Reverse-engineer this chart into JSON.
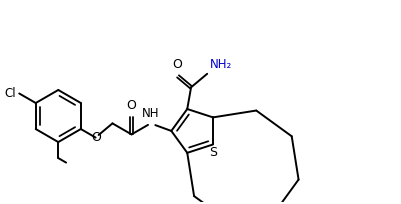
{
  "bg_color": "#ffffff",
  "line_color": "#000000",
  "lw": 1.4,
  "fs": 8.5,
  "figsize": [
    4.02,
    2.04
  ],
  "dpi": 100,
  "xlim": [
    0.2,
    8.2
  ],
  "ylim": [
    0.8,
    4.8
  ]
}
